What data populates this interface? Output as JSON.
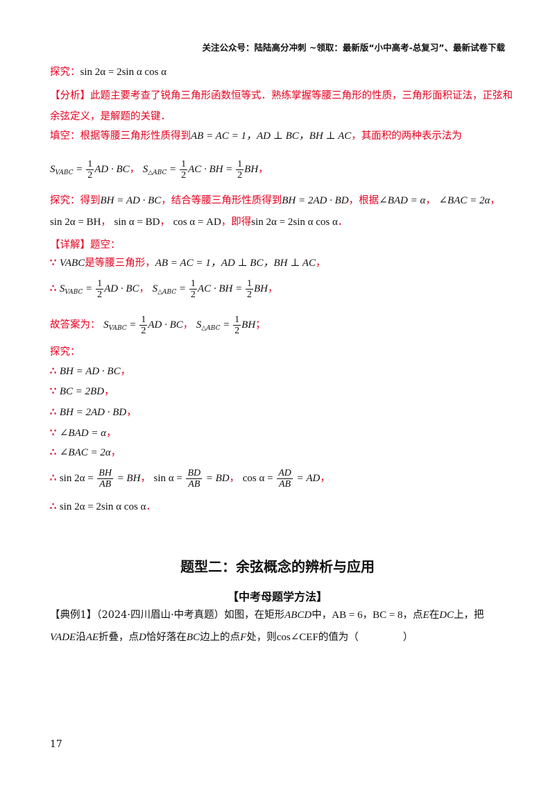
{
  "header": {
    "text": "关注公众号：陆陆高分冲刺  ~领取：最新版“小中高考-总复习”、最新试卷下载"
  },
  "explore_top": {
    "label": "探究：",
    "formula": "sin 2α = 2sin α cos α"
  },
  "analysis": {
    "line1": "【分析】此题主要考查了锐角三角形函数恒等式．熟练掌握等腰三角形的性质，三角形面积证法，正弦和",
    "line2": "余弦定义，是解题的关键．",
    "fill_prefix": "填空：根据等腰三角形性质得到",
    "fill_math": "AB = AC = 1，AD ⊥ BC，BH ⊥ AC",
    "fill_suffix": "，其面积的两种表示法为",
    "area_lhs1": "S",
    "area_sub1": "VABC",
    "area_sub2": "△ABC",
    "area_eq1": "= ",
    "area_rest1": "AD · BC",
    "area_rest2": "AC · BH",
    "area_rest3": "BH",
    "half_num": "1",
    "half_den": "2",
    "explore_prefix": "探究：得到",
    "explore_m1": "BH = AD · BC",
    "explore_mid": "，结合等腰三角形性质得到",
    "explore_m2": "BH = 2AD · BD",
    "explore_mid2": "，根据",
    "explore_m3": "∠BAD = α",
    "explore_m4": "∠BAC = 2α",
    "explore_line2_m1": "sin 2α = BH",
    "explore_line2_m2": "sin α = BD",
    "explore_line2_m3": "cos α = AD",
    "explore_line2_mid": "，即得",
    "explore_line2_m4": "sin 2α = 2sin α cos α"
  },
  "detail": {
    "title": "【详解】题空：",
    "l1_math1": "VABC",
    "l1_text": "是等腰三角形，",
    "l1_math2": "AB = AC = 1，AD ⊥ BC，BH ⊥ AC",
    "answer_label": "故答案为：",
    "explore_label": "探究：",
    "e1": "BH = AD · BC",
    "e2": "BC = 2BD",
    "e3": "BH = 2AD · BD",
    "e4": "∠BAD = α",
    "e5": "∠BAC = 2α",
    "e6a": "sin 2α =",
    "e6a_num": "BH",
    "e6a_den": "AB",
    "e6a_tail": "= BH",
    "e6b": "sin α =",
    "e6b_num": "BD",
    "e6b_den": "AB",
    "e6b_tail": "= BD",
    "e6c": "cos α =",
    "e6c_num": "AD",
    "e6c_den": "AB",
    "e6c_tail": "= AD",
    "e7": "sin 2α = 2sin α cos α"
  },
  "section": {
    "title": "题型二：余弦概念的辨析与应用",
    "subtitle": "【中考母题学方法】"
  },
  "example": {
    "line1_prefix": "【典例1】（2024·四川眉山·中考真题）如图，在矩形",
    "line1_m1": "ABCD",
    "line1_t1": "中，",
    "line1_m2": "AB = 6",
    "line1_m3": "BC = 8",
    "line1_t2": "，点",
    "line1_m4": "E",
    "line1_t3": "在",
    "line1_m5": "DC",
    "line1_t4": "上，把",
    "line2_m1": "VADE",
    "line2_t1": "沿",
    "line2_m2": "AE",
    "line2_t2": "折叠，点",
    "line2_m3": "D",
    "line2_t3": "恰好落在",
    "line2_m4": "BC",
    "line2_t4": "边上的点",
    "line2_m5": "F",
    "line2_t5": "处，则",
    "line2_m6": "cos∠CEF",
    "line2_t6": "的值为（",
    "line2_t7": "）"
  },
  "comma": "，",
  "period": "．",
  "semicolon": "；",
  "because": "∵",
  "therefore": "∴",
  "page_number": "17"
}
